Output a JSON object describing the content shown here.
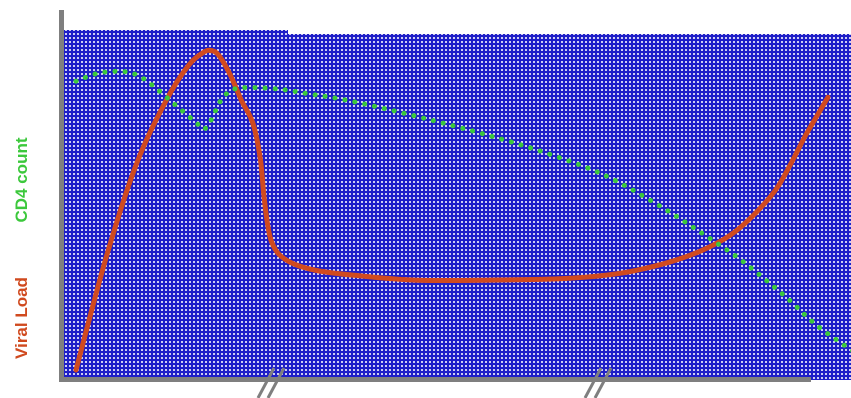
{
  "chart_data": {
    "type": "line",
    "title": "",
    "xlabel": "",
    "ylabel_parts": [
      {
        "text": "Viral Load",
        "color": "#D04A1F"
      },
      {
        "text": "CD4 count",
        "color": "#3CC83C"
      }
    ],
    "x_axis_breaks": 2,
    "plot_background": "#1E1EC8",
    "plot_pattern_color": "#FFFFFF",
    "axis_color": "#7F7F7F",
    "grid": false,
    "legend": "none",
    "xlim": [
      0,
      100
    ],
    "ylim": [
      0,
      100
    ],
    "series": [
      {
        "id": "viral-load",
        "color": "#D04A1F",
        "style": "solid",
        "x": [
          0,
          4,
          8,
          12,
          15,
          17,
          18,
          19,
          20.5,
          22,
          23.5,
          24.5,
          25,
          25.5,
          26,
          27,
          29,
          32,
          37,
          45,
          55,
          65,
          72,
          78,
          83,
          87,
          90,
          93,
          95,
          97,
          99,
          100
        ],
        "y": [
          0,
          35,
          64,
          84,
          95,
          99,
          99.5,
          98,
          92,
          84,
          77,
          66,
          54,
          45,
          40,
          36,
          33,
          31,
          29.5,
          28,
          28,
          28.5,
          30,
          33,
          37,
          42,
          48,
          56,
          64,
          73,
          81,
          85
        ]
      },
      {
        "id": "cd4-count",
        "color": "#3CC83C",
        "style": "dotted",
        "x": [
          0,
          3,
          6,
          8,
          10,
          13,
          16,
          17,
          18,
          19,
          20,
          21,
          23,
          27,
          31,
          35,
          40,
          47,
          55,
          62,
          70,
          77,
          83,
          88,
          92,
          95,
          97,
          99,
          102,
          104.5
        ],
        "y": [
          90,
          92.5,
          93,
          92,
          89,
          83,
          77,
          75,
          78,
          83,
          86,
          87.5,
          88,
          87.5,
          86,
          84.5,
          82,
          78,
          73,
          68,
          61,
          52,
          43,
          35,
          27.5,
          21.5,
          17,
          13,
          8,
          4
        ]
      }
    ]
  }
}
